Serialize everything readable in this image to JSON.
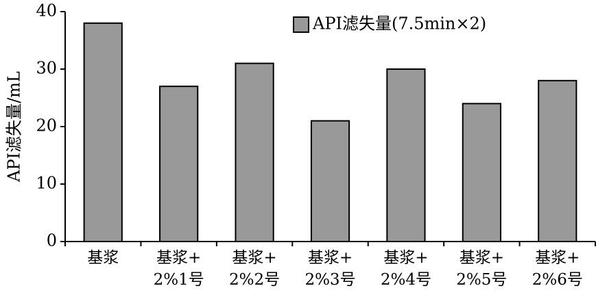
{
  "chart_data": {
    "type": "bar",
    "y_label": "API滤失量/mL",
    "categories": [
      "基浆",
      "基浆+\n2%1号",
      "基浆+\n2%2号",
      "基浆+\n2%3号",
      "基浆+\n2%4号",
      "基浆+\n2%5号",
      "基浆+\n2%6号"
    ],
    "series": [
      {
        "name": "API滤失量(7.5min×2)",
        "color": "#999999",
        "values": [
          38,
          27,
          31,
          21,
          30,
          24,
          28
        ]
      }
    ],
    "ylim": [
      0,
      40
    ],
    "yticks": [
      0,
      10,
      20,
      30,
      40
    ],
    "grid": false,
    "legend": "top-right"
  }
}
